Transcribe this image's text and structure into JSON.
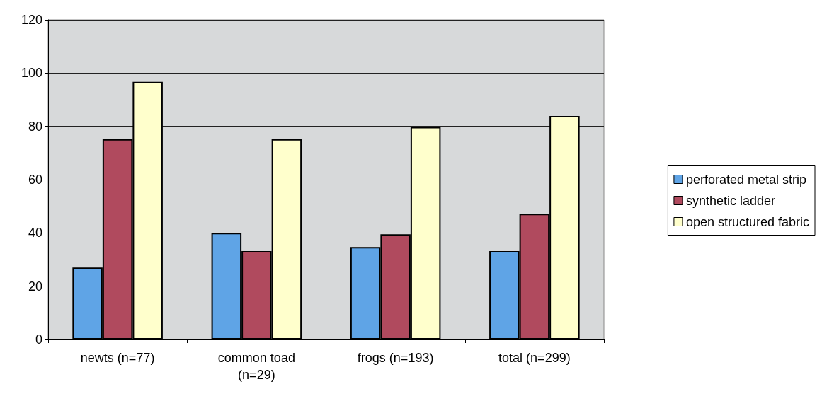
{
  "chart_data": {
    "type": "bar",
    "categories": [
      "newts (n=77)",
      "common toad\n(n=29)",
      "frogs (n=193)",
      "total (n=299)"
    ],
    "series": [
      {
        "name": "perforated metal strip",
        "color": "#5fa4e6",
        "values": [
          27,
          40,
          34.7,
          33.2
        ]
      },
      {
        "name": "synthetic ladder",
        "color": "#b04a5e",
        "values": [
          75.2,
          33.2,
          39.5,
          47.2
        ]
      },
      {
        "name": "open structured fabric",
        "color": "#ffffcc",
        "values": [
          96.7,
          75.2,
          79.8,
          83.9
        ]
      }
    ],
    "ylim": [
      0,
      120
    ],
    "yticks": [
      0,
      20,
      40,
      60,
      80,
      100,
      120
    ],
    "grid": "y",
    "legend": "right"
  }
}
